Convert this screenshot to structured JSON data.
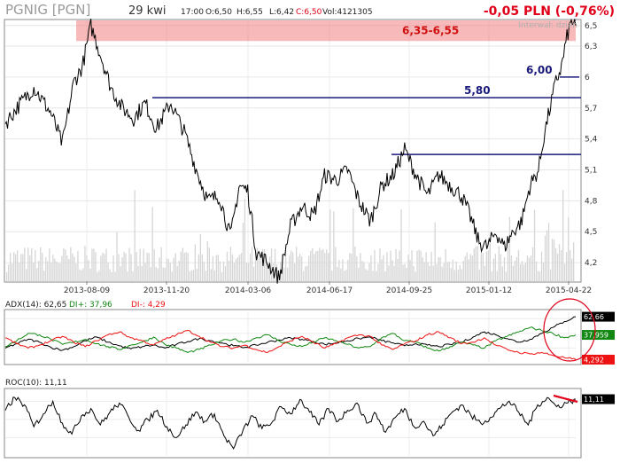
{
  "header": {
    "symbol": "PGNIG [PGN]",
    "interval": "29 kwi",
    "time": "17:00",
    "open": "O:6,50",
    "high": "H:6,55",
    "low": "L:6,42",
    "close": "C:6,50",
    "volume": "Vol:4121305",
    "change": "-0,05 PLN (-0,76%)",
    "watermark": "Interwał: dzień"
  },
  "chart_data": [
    {
      "type": "line",
      "panel": "price",
      "x_tick_labels": [
        "2013-08-09",
        "2013-11-20",
        "2014-03-06",
        "2014-06-17",
        "2014-09-25",
        "2015-01-12",
        "2015-04-22"
      ],
      "y_tick_labels": [
        "6,5",
        "6,3",
        "6",
        "5,7",
        "5,4",
        "5,1",
        "4,8",
        "4,5",
        "4,2"
      ],
      "y_ticks": [
        6.5,
        6.3,
        6.0,
        5.7,
        5.4,
        5.1,
        4.8,
        4.5,
        4.2
      ],
      "ylim": [
        4.02,
        6.55
      ],
      "series_points": [
        [
          0,
          5.55
        ],
        [
          0.02,
          5.7
        ],
        [
          0.05,
          5.9
        ],
        [
          0.08,
          5.65
        ],
        [
          0.1,
          5.35
        ],
        [
          0.12,
          5.95
        ],
        [
          0.135,
          6.1
        ],
        [
          0.15,
          6.5
        ],
        [
          0.165,
          6.25
        ],
        [
          0.185,
          5.9
        ],
        [
          0.205,
          5.7
        ],
        [
          0.225,
          5.6
        ],
        [
          0.245,
          5.75
        ],
        [
          0.265,
          5.5
        ],
        [
          0.29,
          5.75
        ],
        [
          0.315,
          5.45
        ],
        [
          0.335,
          5.1
        ],
        [
          0.355,
          4.8
        ],
        [
          0.375,
          4.85
        ],
        [
          0.395,
          4.45
        ],
        [
          0.41,
          4.95
        ],
        [
          0.425,
          4.9
        ],
        [
          0.44,
          4.3
        ],
        [
          0.46,
          4.2
        ],
        [
          0.48,
          4.05
        ],
        [
          0.5,
          4.55
        ],
        [
          0.52,
          4.75
        ],
        [
          0.54,
          4.65
        ],
        [
          0.56,
          5.05
        ],
        [
          0.58,
          5.0
        ],
        [
          0.6,
          5.1
        ],
        [
          0.62,
          4.8
        ],
        [
          0.64,
          4.6
        ],
        [
          0.66,
          4.95
        ],
        [
          0.68,
          5.05
        ],
        [
          0.7,
          5.3
        ],
        [
          0.72,
          5.05
        ],
        [
          0.74,
          4.85
        ],
        [
          0.76,
          5.05
        ],
        [
          0.78,
          4.95
        ],
        [
          0.8,
          4.85
        ],
        [
          0.815,
          4.65
        ],
        [
          0.83,
          4.4
        ],
        [
          0.845,
          4.35
        ],
        [
          0.86,
          4.5
        ],
        [
          0.875,
          4.35
        ],
        [
          0.89,
          4.5
        ],
        [
          0.905,
          4.6
        ],
        [
          0.92,
          4.95
        ],
        [
          0.935,
          5.1
        ],
        [
          0.945,
          5.45
        ],
        [
          0.955,
          5.7
        ],
        [
          0.965,
          5.95
        ],
        [
          0.975,
          6.1
        ],
        [
          0.985,
          6.4
        ],
        [
          0.993,
          6.55
        ],
        [
          1.0,
          6.5
        ]
      ],
      "volume_level": 0.35,
      "annotations": [
        {
          "label": "6,35-6,55",
          "kind": "band",
          "y_from": 6.35,
          "y_to": 6.55,
          "color": "#f08080"
        },
        {
          "label": "6,00",
          "kind": "line",
          "y": 6.0,
          "color": "#1a1a7a"
        },
        {
          "label": "5,80",
          "kind": "line",
          "y": 5.8,
          "color": "#1a1a7a"
        },
        {
          "label": "",
          "kind": "line",
          "y": 5.25,
          "color": "#1a1a7a"
        }
      ]
    },
    {
      "type": "line",
      "panel": "ADX",
      "title": "ADX(14): 62,65",
      "ylim": [
        0,
        70
      ],
      "series": [
        {
          "name": "ADX(14): 62,65",
          "color": "#000000",
          "last": "62,66",
          "last_value": 62.66,
          "points": [
            20,
            26,
            32,
            28,
            21,
            17,
            22,
            30,
            35,
            28,
            23,
            19,
            22,
            24,
            20,
            25,
            29,
            33,
            30,
            27,
            23,
            21,
            24,
            28,
            31,
            34,
            32,
            29,
            25,
            27,
            30,
            33,
            35,
            30,
            27,
            23,
            26,
            24,
            22,
            25,
            28,
            35,
            42,
            38,
            33,
            28,
            32,
            40,
            48,
            56,
            62.66
          ]
        },
        {
          "name": "DI+: 37,96",
          "color": "#118811",
          "last": "37,959",
          "last_value": 37.96,
          "points": [
            22,
            30,
            40,
            38,
            32,
            25,
            28,
            32,
            26,
            22,
            18,
            24,
            28,
            35,
            25,
            20,
            14,
            18,
            24,
            30,
            32,
            28,
            34,
            38,
            30,
            25,
            22,
            28,
            34,
            30,
            25,
            20,
            22,
            34,
            40,
            30,
            28,
            20,
            16,
            22,
            28,
            24,
            20,
            30,
            36,
            42,
            48,
            44,
            40,
            34,
            37.96
          ]
        },
        {
          "name": "DI-: 4,29",
          "color": "#ee1111",
          "last": "4,292",
          "last_value": 4.29,
          "points": [
            34,
            26,
            20,
            24,
            30,
            36,
            28,
            22,
            30,
            38,
            42,
            34,
            30,
            24,
            32,
            38,
            44,
            36,
            28,
            22,
            20,
            24,
            18,
            14,
            22,
            30,
            36,
            28,
            20,
            26,
            34,
            38,
            36,
            24,
            18,
            26,
            30,
            38,
            42,
            34,
            26,
            28,
            34,
            24,
            18,
            14,
            12,
            14,
            10,
            7,
            4.29
          ]
        }
      ]
    },
    {
      "type": "line",
      "panel": "ROC",
      "title": "ROC(10): 11,11",
      "ylim": [
        -20,
        16
      ],
      "series": [
        {
          "name": "ROC(10): 11,11",
          "color": "#000000",
          "last": "11,11",
          "last_value": 11.11,
          "points": [
            5,
            12,
            8,
            -4,
            3,
            10,
            -2,
            -8,
            2,
            6,
            -3,
            4,
            9,
            1,
            -6,
            0,
            5,
            -4,
            -10,
            -3,
            4,
            -1,
            3,
            -9,
            -16,
            -6,
            2,
            -5,
            -2,
            7,
            3,
            11,
            4,
            -3,
            6,
            -1,
            5,
            9,
            -2,
            3,
            -7,
            1,
            6,
            -4,
            -1,
            -9,
            -3,
            4,
            8,
            2,
            -2,
            1,
            6,
            10,
            4,
            -3,
            8,
            12,
            7,
            9,
            11.11
          ]
        }
      ]
    }
  ]
}
